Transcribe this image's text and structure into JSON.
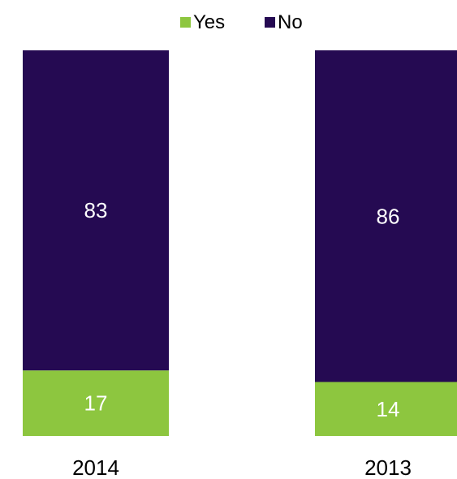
{
  "chart_data": {
    "type": "bar",
    "stacked": true,
    "percent_stacked": true,
    "categories": [
      "2014",
      "2013"
    ],
    "series": [
      {
        "name": "Yes",
        "values": [
          17,
          14
        ],
        "color": "#8DC63F"
      },
      {
        "name": "No",
        "values": [
          83,
          86
        ],
        "color": "#250A52"
      }
    ],
    "ylim": [
      0,
      100
    ],
    "grid": false,
    "legend_position": "top-center",
    "data_label_color": "#FFFFFF",
    "tick_label_color": "#000000"
  }
}
